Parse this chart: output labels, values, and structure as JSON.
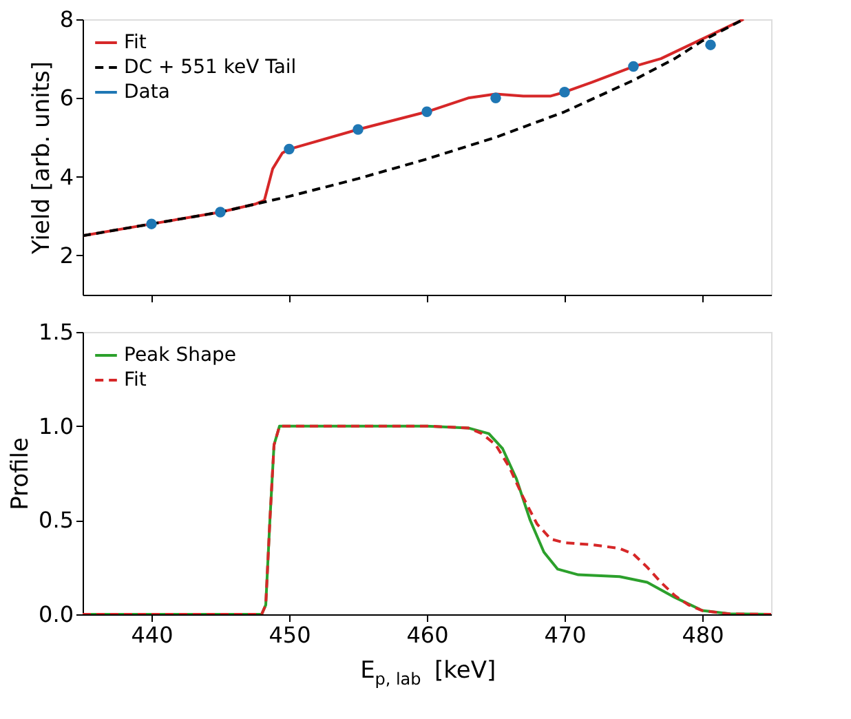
{
  "chart_data": [
    {
      "type": "line",
      "ylabel": "Yield [arb. units]",
      "xlim": [
        435,
        485
      ],
      "xticks": [
        440,
        450,
        460,
        470,
        480
      ],
      "ylim": [
        1,
        8
      ],
      "yticks": [
        2,
        4,
        6,
        8
      ],
      "tick_labels": "y",
      "legend": "top left",
      "grid": false,
      "series": [
        {
          "name": "Fit",
          "type": "line",
          "color": "#d62728",
          "line_style": "solid",
          "x": [
            435,
            440,
            445,
            447.5,
            448.2,
            448.8,
            449.5,
            450,
            455,
            460,
            463,
            465,
            467,
            469,
            470,
            472,
            475,
            477,
            480,
            483
          ],
          "values": [
            2.5,
            2.8,
            3.1,
            3.3,
            3.4,
            4.2,
            4.6,
            4.7,
            5.2,
            5.65,
            6.0,
            6.1,
            6.05,
            6.05,
            6.15,
            6.4,
            6.8,
            7.0,
            7.5,
            8.0
          ]
        },
        {
          "name": "DC + 551 keV Tail",
          "type": "line",
          "color": "#000000",
          "line_style": "dashed",
          "x": [
            435,
            440,
            445,
            447.5,
            450,
            455,
            460,
            465,
            470,
            475,
            478,
            480,
            483
          ],
          "values": [
            2.5,
            2.8,
            3.1,
            3.3,
            3.5,
            3.95,
            4.45,
            5.0,
            5.65,
            6.45,
            7.0,
            7.45,
            8.0
          ]
        },
        {
          "name": "Data",
          "type": "scatter",
          "color": "#1f77b4",
          "marker": "circle",
          "x": [
            440,
            445,
            450,
            455,
            460,
            465,
            470,
            475,
            480.6
          ],
          "values": [
            2.8,
            3.1,
            4.7,
            5.2,
            5.65,
            6.0,
            6.15,
            6.8,
            7.35
          ]
        }
      ]
    },
    {
      "type": "line",
      "ylabel": "Profile",
      "xlabel": "E$_{p, lab}$ [keV]",
      "xlim": [
        435,
        485
      ],
      "xticks": [
        440,
        450,
        460,
        470,
        480
      ],
      "ylim": [
        0,
        1.5
      ],
      "yticks": [
        {
          "value": 0,
          "label": "0.0"
        },
        0.5,
        {
          "value": 1,
          "label": "1.0"
        },
        1.5
      ],
      "legend": "top left",
      "grid": false,
      "series": [
        {
          "name": "Peak Shape",
          "type": "line",
          "color": "#2ca02c",
          "line_style": "solid",
          "x": [
            435,
            448,
            448.3,
            448.6,
            448.9,
            449.3,
            460,
            463,
            464.5,
            465.5,
            466.5,
            467.5,
            468.5,
            469.5,
            471,
            474,
            476,
            478,
            480,
            482,
            485
          ],
          "values": [
            0,
            0,
            0.05,
            0.5,
            0.9,
            1.0,
            1.0,
            0.99,
            0.96,
            0.88,
            0.72,
            0.5,
            0.33,
            0.24,
            0.21,
            0.2,
            0.17,
            0.09,
            0.02,
            0.003,
            0
          ]
        },
        {
          "name": "Fit",
          "type": "line",
          "color": "#d62728",
          "line_style": "dashed",
          "x": [
            435,
            448,
            448.3,
            448.6,
            448.9,
            449.3,
            460,
            463,
            464,
            465,
            466,
            467,
            468,
            469,
            470,
            472,
            474,
            475,
            476,
            477,
            478,
            479,
            480,
            482,
            485
          ],
          "values": [
            0,
            0,
            0.05,
            0.5,
            0.9,
            1.0,
            1.0,
            0.99,
            0.96,
            0.9,
            0.78,
            0.62,
            0.48,
            0.4,
            0.38,
            0.37,
            0.35,
            0.32,
            0.25,
            0.17,
            0.1,
            0.05,
            0.02,
            0.002,
            0
          ]
        }
      ]
    }
  ]
}
